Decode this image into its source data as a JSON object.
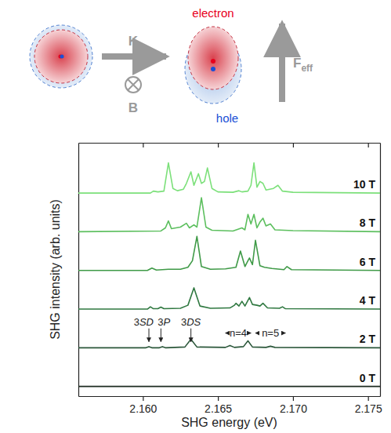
{
  "chart_data": {
    "type": "line",
    "x_label": "SHG energy (eV)",
    "y_label": "SHG intensity (arb. units)",
    "xlim": [
      2.1557,
      2.1758
    ],
    "xticks": [
      {
        "value": 2.16,
        "label": "2.160"
      },
      {
        "value": 2.165,
        "label": "2.165"
      },
      {
        "value": 2.17,
        "label": "2.170"
      },
      {
        "value": 2.175,
        "label": "2.175"
      }
    ],
    "ylim": [
      -0.25,
      6.3
    ],
    "yticks": [],
    "tick_labels": "x",
    "grid": false,
    "series": [
      {
        "name": "10 T",
        "color": "#7ce07a",
        "x": [
          2.1557,
          2.1605,
          2.1607,
          2.161,
          2.1614,
          2.1617,
          2.162,
          2.1623,
          2.1627,
          2.1629,
          2.1632,
          2.1634,
          2.1637,
          2.1639,
          2.1641,
          2.1643,
          2.1646,
          2.165,
          2.166,
          2.1664,
          2.1666,
          2.167,
          2.1672,
          2.1674,
          2.1676,
          2.1678,
          2.168,
          2.1682,
          2.1687,
          2.169,
          2.1693,
          2.17,
          2.1758
        ],
        "values": [
          5,
          5,
          5.05,
          5.03,
          5.05,
          5.78,
          5.12,
          5.06,
          5.1,
          5.25,
          5.55,
          5.2,
          5.5,
          5.25,
          5.3,
          5.65,
          5.12,
          5.03,
          5.02,
          5.06,
          5.03,
          5.05,
          5.2,
          5.78,
          5.15,
          5.3,
          5.25,
          5.08,
          5.12,
          5.2,
          5.05,
          5.02,
          5
        ]
      },
      {
        "name": "8 T",
        "color": "#5cbf5e",
        "x": [
          2.1557,
          2.1612,
          2.1615,
          2.1617,
          2.1619,
          2.1625,
          2.1629,
          2.1631,
          2.1634,
          2.1636,
          2.1639,
          2.1642,
          2.1646,
          2.166,
          2.1666,
          2.1668,
          2.167,
          2.1672,
          2.1674,
          2.1676,
          2.1678,
          2.168,
          2.1682,
          2.1685,
          2.1688,
          2.17,
          2.1758
        ],
        "values": [
          4,
          4.02,
          4.1,
          4.28,
          4.08,
          4.12,
          4.22,
          4.1,
          4.18,
          4.12,
          4.88,
          4.12,
          4.04,
          4.02,
          4.1,
          4.05,
          4.45,
          4.2,
          4.45,
          4.1,
          4.25,
          4.35,
          4.15,
          4.2,
          4.05,
          4.03,
          4
        ]
      },
      {
        "name": "6 T",
        "color": "#3f9a47",
        "x": [
          2.1557,
          2.1603,
          2.1606,
          2.1609,
          2.1617,
          2.1625,
          2.163,
          2.1633,
          2.1636,
          2.1639,
          2.1645,
          2.1655,
          2.1662,
          2.1665,
          2.1668,
          2.167,
          2.1671,
          2.1673,
          2.1675,
          2.1678,
          2.1681,
          2.1686,
          2.1694,
          2.1696,
          2.1699,
          2.1758
        ],
        "values": [
          3,
          3,
          3.06,
          3.01,
          3.03,
          3.03,
          3.08,
          3.25,
          3.88,
          3.1,
          3.03,
          3.04,
          3.08,
          3.5,
          3.1,
          3.25,
          3.32,
          3.15,
          3.78,
          3.12,
          3.08,
          3.05,
          3.02,
          3.1,
          3.02,
          3
        ]
      },
      {
        "name": "4 T",
        "color": "#2f7840",
        "x": [
          2.1557,
          2.1603,
          2.1605,
          2.1607,
          2.161,
          2.1612,
          2.1614,
          2.1625,
          2.163,
          2.1634,
          2.1638,
          2.1645,
          2.1658,
          2.1661,
          2.1662,
          2.1664,
          2.1666,
          2.1668,
          2.1671,
          2.1673,
          2.1676,
          2.1678,
          2.168,
          2.1683,
          2.1691,
          2.1693,
          2.1695,
          2.1758
        ],
        "values": [
          2,
          2,
          2.06,
          2.01,
          2.01,
          2.05,
          2.01,
          2.02,
          2.1,
          2.55,
          2.08,
          2.02,
          2.03,
          2.1,
          2.15,
          2.08,
          2.2,
          2.08,
          2.3,
          2.12,
          2.1,
          2.08,
          2.15,
          2.03,
          2.02,
          2.06,
          2.01,
          2
        ]
      },
      {
        "name": "2 T",
        "color": "#2b573a",
        "x": [
          2.1557,
          2.1602,
          2.1604,
          2.1606,
          2.1611,
          2.1613,
          2.1615,
          2.1628,
          2.1632,
          2.1636,
          2.1655,
          2.1658,
          2.1661,
          2.1667,
          2.167,
          2.1673,
          2.1682,
          2.1685,
          2.1688,
          2.1758
        ],
        "values": [
          1,
          1,
          1.03,
          1,
          1,
          1.03,
          1,
          1.02,
          1.22,
          1.02,
          1.01,
          1.06,
          1.01,
          1.03,
          1.18,
          1.02,
          1.01,
          1.04,
          1.01,
          1
        ]
      },
      {
        "name": "0 T",
        "color": "#1d2b20",
        "x": [
          2.1557,
          2.1758
        ],
        "values": [
          0,
          0
        ]
      }
    ],
    "annotations": [
      {
        "text": "3SD",
        "x": 2.1604,
        "y": 1.5
      },
      {
        "text": "3P",
        "x": 2.1612,
        "y": 1.5
      },
      {
        "text": "3DS",
        "x": 2.1632,
        "y": 1.5
      },
      {
        "text": "n=4",
        "x_range": [
          2.1655,
          2.1672
        ],
        "y": 1.38
      },
      {
        "text": "n=5",
        "x_range": [
          2.1675,
          2.1695
        ],
        "y": 1.38
      }
    ]
  },
  "diagram": {
    "electron": "electron",
    "hole": "hole",
    "wavevector": "K",
    "magnetic_field": "B",
    "field": "F",
    "field_subscript": "eff"
  }
}
